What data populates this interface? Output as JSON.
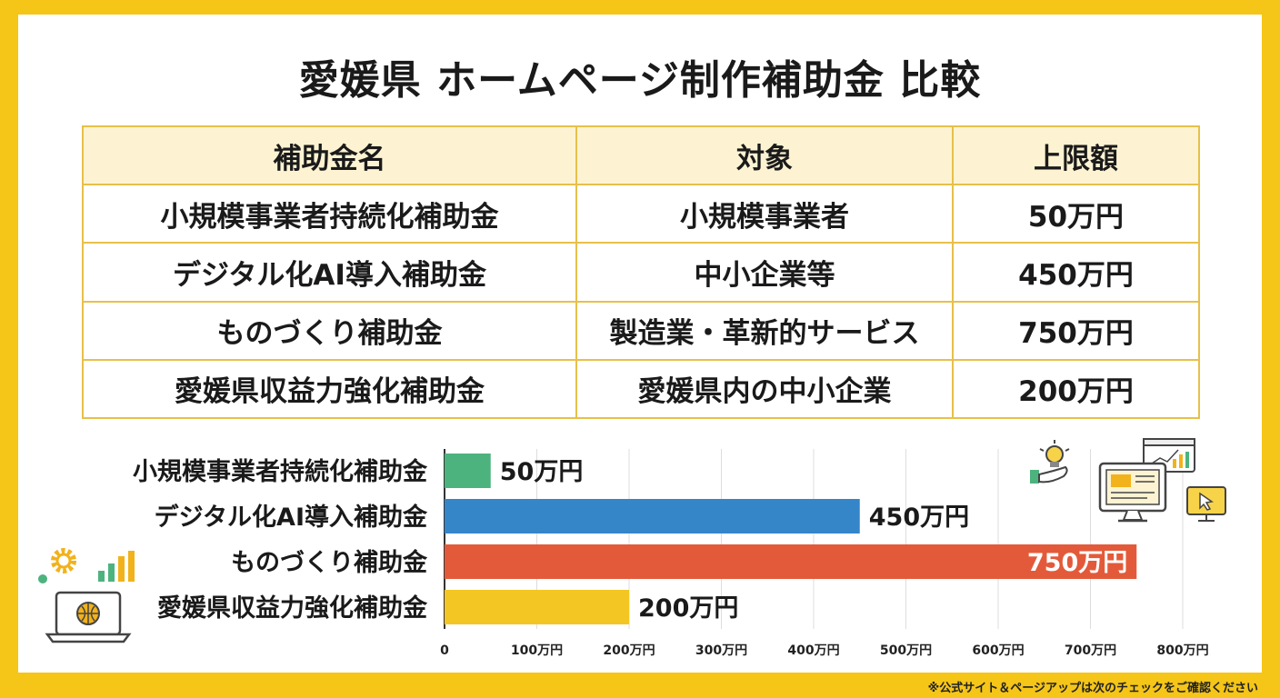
{
  "title": "愛媛県 ホームページ制作補助金 比較",
  "table": {
    "headers": [
      "補助金名",
      "対象",
      "上限額"
    ],
    "rows": [
      [
        "小規模事業者持続化補助金",
        "小規模事業者",
        "50万円"
      ],
      [
        "デジタル化AI導入補助金",
        "中小企業等",
        "450万円"
      ],
      [
        "ものづくり補助金",
        "製造業・革新的サービス",
        "750万円"
      ],
      [
        "愛媛県収益力強化補助金",
        "愛媛県内の中小企業",
        "200万円"
      ]
    ]
  },
  "chart_data": {
    "type": "bar",
    "orientation": "horizontal",
    "categories": [
      "小規模事業者持続化補助金",
      "デジタル化AI導入補助金",
      "ものづくり補助金",
      "愛媛県収益力強化補助金"
    ],
    "values": [
      50,
      450,
      750,
      200
    ],
    "value_labels": [
      "50万円",
      "450万円",
      "750万円",
      "200万円"
    ],
    "colors": [
      "#4DB37E",
      "#3585C9",
      "#E35A3A",
      "#F4C623"
    ],
    "xlim": [
      0,
      800
    ],
    "xticks": [
      0,
      100,
      200,
      300,
      400,
      500,
      600,
      700,
      800
    ],
    "xtick_labels": [
      "0",
      "100万円",
      "200万円",
      "300万円",
      "400万円",
      "500万円",
      "600万円",
      "700万円",
      "800万円"
    ],
    "grid": true
  },
  "footnote": "※公式サイト＆ページアップは次のチェックをご確認ください",
  "colors": {
    "frame": "#F5C518",
    "table_border": "#E7C04A",
    "header_bg": "#FDF3D2"
  }
}
